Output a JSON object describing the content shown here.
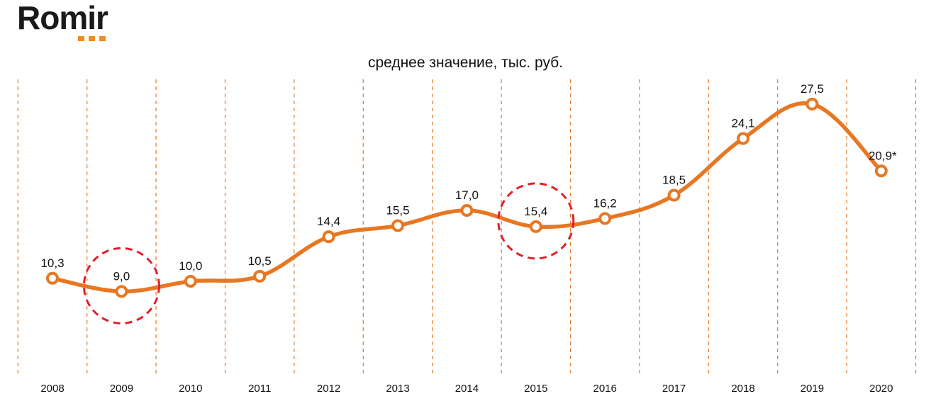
{
  "logo": {
    "text": "Romir",
    "dot_color": "#F28C1E"
  },
  "colors": {
    "line": "#E87722",
    "gridline": "#E87722",
    "highlight_circle": "#E0202A",
    "marker_fill": "#ffffff"
  },
  "chart_data": {
    "type": "line",
    "title": "среднее значение, тыс. руб.",
    "xlabel": "",
    "ylabel": "",
    "categories": [
      "2008",
      "2009",
      "2010",
      "2011",
      "2012",
      "2013",
      "2014",
      "2015",
      "2016",
      "2017",
      "2018",
      "2019",
      "2020"
    ],
    "series": [
      {
        "values": [
          10.3,
          9.0,
          10.0,
          10.5,
          14.4,
          15.5,
          17.0,
          15.4,
          16.2,
          18.5,
          24.1,
          27.5,
          20.9
        ],
        "labels": [
          "10,3",
          "9,0",
          "10,0",
          "10,5",
          "14,4",
          "15,5",
          "17,0",
          "15,4",
          "16,2",
          "18,5",
          "24,1",
          "27,5",
          "20,9*"
        ]
      }
    ],
    "ylim": [
      0,
      34
    ],
    "grid": "vertical dashed separators between years",
    "highlighted_categories": [
      "2009",
      "2015"
    ],
    "y_axis_visible": false
  }
}
